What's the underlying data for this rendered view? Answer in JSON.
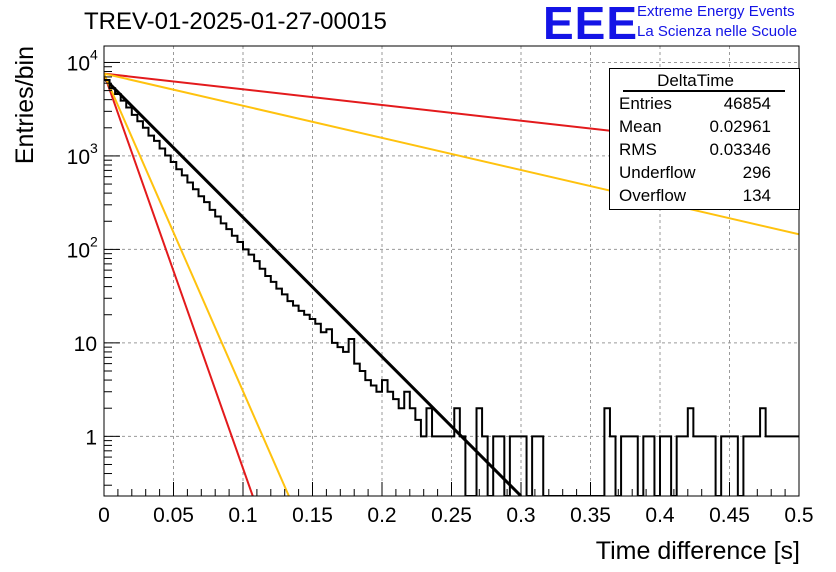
{
  "header": {
    "title": "TREV-01-2025-01-27-00015",
    "logo_text": "EEE",
    "logo_line1": "Extreme Energy Events",
    "logo_line2": "La Scienza nelle Scuole",
    "logo_color": "#1414e6"
  },
  "stats": {
    "title": "DeltaTime",
    "rows": [
      {
        "key": "Entries",
        "value": "46854"
      },
      {
        "key": "Mean",
        "value": "0.02961"
      },
      {
        "key": "RMS",
        "value": "0.03346"
      },
      {
        "key": "Underflow",
        "value": "296"
      },
      {
        "key": "Overflow",
        "value": "134"
      }
    ]
  },
  "chart_data": {
    "type": "histogram",
    "xlabel": "Time difference [s]",
    "ylabel": "Entries/bin",
    "xlim": [
      0,
      0.5
    ],
    "ylim": [
      0.23,
      15000
    ],
    "y_scale": "log",
    "grid": true,
    "x_ticks": [
      "0",
      "0.05",
      "0.1",
      "0.15",
      "0.2",
      "0.25",
      "0.3",
      "0.35",
      "0.4",
      "0.45",
      "0.5"
    ],
    "y_ticks": [
      {
        "value": 1,
        "label": "1"
      },
      {
        "value": 10,
        "label": "10"
      },
      {
        "value": 100,
        "label": "10",
        "exponent": "2"
      },
      {
        "value": 1000,
        "label": "10",
        "exponent": "3"
      },
      {
        "value": 10000,
        "label": "10",
        "exponent": "4"
      }
    ],
    "histogram": {
      "color": "#000000",
      "bin_width": 0.004,
      "counts": [
        6500,
        5300,
        4600,
        3900,
        3300,
        2750,
        2350,
        2000,
        1650,
        1450,
        1200,
        1010,
        860,
        720,
        620,
        520,
        440,
        370,
        320,
        265,
        225,
        190,
        165,
        140,
        120,
        100,
        88,
        75,
        62,
        52,
        45,
        38,
        33,
        28,
        25,
        22,
        20,
        18,
        16,
        13,
        14,
        10,
        9,
        8,
        11,
        6,
        5,
        4,
        3.5,
        3,
        4,
        3,
        2.5,
        2,
        3,
        2,
        1.5,
        1,
        2,
        1,
        1,
        1,
        1,
        2,
        1,
        0.1,
        0.1,
        2,
        1,
        0.1,
        1,
        1,
        0.1,
        1,
        1,
        1,
        0.1,
        1,
        1,
        0.1,
        0.1,
        0.1,
        0.1,
        0.1,
        0.1,
        0.1,
        0.1,
        0.1,
        0.1,
        0.1,
        2,
        1,
        0.1,
        1,
        1,
        1,
        0.1,
        1,
        1,
        0.1,
        1,
        1,
        0.1,
        1,
        1,
        2,
        1,
        1,
        1,
        1,
        0.1,
        1,
        1,
        1,
        0.1,
        1,
        1,
        1,
        2,
        1,
        1,
        1,
        1,
        1,
        1
      ]
    },
    "fit_lines": [
      {
        "color": "#000000",
        "x": [
          0,
          0.3
        ],
        "y": [
          6800,
          0.23
        ],
        "width": 3
      },
      {
        "color": "#e31a1c",
        "x": [
          0,
          0.5
        ],
        "y": [
          7600,
          1100
        ],
        "width": 2
      },
      {
        "color": "#ffc20e",
        "x": [
          0,
          0.5
        ],
        "y": [
          7600,
          145
        ],
        "width": 2
      },
      {
        "color": "#e31a1c",
        "x": [
          0,
          0.107
        ],
        "y": [
          7600,
          0.23
        ],
        "width": 2
      },
      {
        "color": "#ffc20e",
        "x": [
          0,
          0.133
        ],
        "y": [
          7600,
          0.23
        ],
        "width": 2
      }
    ]
  }
}
